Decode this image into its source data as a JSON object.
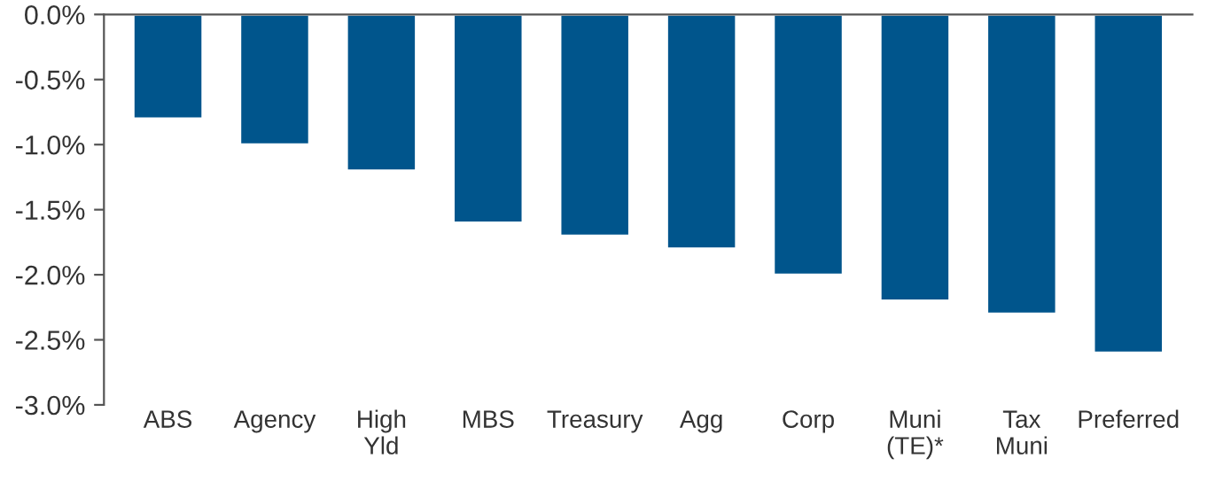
{
  "chart_data": {
    "type": "bar",
    "categories": [
      "ABS",
      "Agency",
      "High\nYld",
      "MBS",
      "Treasury",
      "Agg",
      "Corp",
      "Muni\n(TE)*",
      "Tax\nMuni",
      "Preferred"
    ],
    "values": [
      -0.8,
      -1.0,
      -1.2,
      -1.6,
      -1.7,
      -1.8,
      -2.0,
      -2.2,
      -2.3,
      -2.6
    ],
    "color": "#00558c",
    "ylim": [
      -3.0,
      0.0
    ],
    "yticks": [
      {
        "value": 0.0,
        "label": "0.0%"
      },
      {
        "value": -0.5,
        "label": "-0.5%"
      },
      {
        "value": -1.0,
        "label": "-1.0%"
      },
      {
        "value": -1.5,
        "label": "-1.5%"
      },
      {
        "value": -2.0,
        "label": "-2.0%"
      },
      {
        "value": -2.5,
        "label": "-2.5%"
      },
      {
        "value": -3.0,
        "label": "-3.0%"
      }
    ],
    "grid": false
  }
}
